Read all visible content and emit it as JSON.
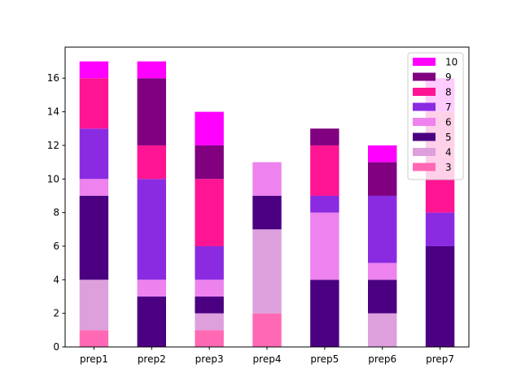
{
  "chart_data": {
    "type": "bar",
    "stacked": true,
    "categories": [
      "prep1",
      "prep2",
      "prep3",
      "prep4",
      "prep5",
      "prep6",
      "prep7"
    ],
    "series": [
      {
        "name": "3",
        "color": "#ff69b4",
        "values": [
          1,
          0,
          1,
          2,
          0,
          0,
          0
        ]
      },
      {
        "name": "4",
        "color": "#dda0dd",
        "values": [
          3,
          0,
          1,
          5,
          0,
          2,
          0
        ]
      },
      {
        "name": "5",
        "color": "#4b0082",
        "values": [
          5,
          3,
          1,
          2,
          4,
          2,
          6
        ]
      },
      {
        "name": "6",
        "color": "#ee82ee",
        "values": [
          1,
          1,
          1,
          2,
          4,
          1,
          0
        ]
      },
      {
        "name": "7",
        "color": "#8a2be2",
        "values": [
          3,
          6,
          2,
          0,
          1,
          4,
          2
        ]
      },
      {
        "name": "8",
        "color": "#ff1493",
        "values": [
          3,
          2,
          4,
          0,
          3,
          0,
          6
        ]
      },
      {
        "name": "9",
        "color": "#800080",
        "values": [
          0,
          4,
          2,
          0,
          1,
          2,
          0
        ]
      },
      {
        "name": "10",
        "color": "#ff00ff",
        "values": [
          1,
          1,
          2,
          0,
          0,
          1,
          2
        ]
      }
    ],
    "ylim": [
      0,
      17.85
    ],
    "yticks": [
      0,
      2,
      4,
      6,
      8,
      10,
      12,
      14,
      16
    ],
    "legend": {
      "placement": "top-right",
      "order": "reversed"
    },
    "grid": false
  }
}
